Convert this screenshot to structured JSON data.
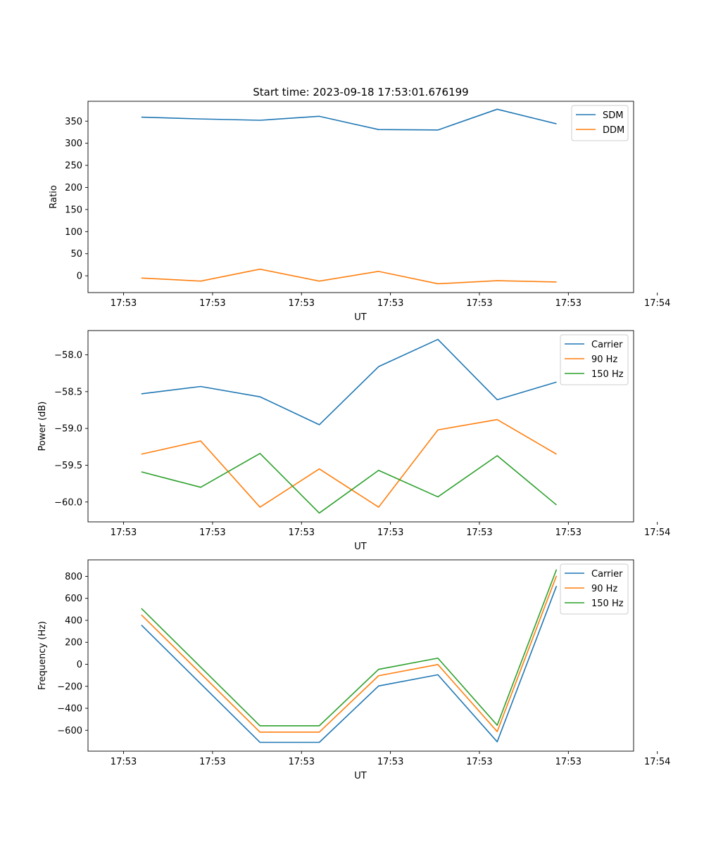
{
  "chart_data": [
    {
      "type": "line",
      "title": "Start time: 2023-09-18 17:53:01.676199",
      "xlabel": "UT",
      "ylabel": "Ratio",
      "xlim": [
        -0.6,
        8.6
      ],
      "ylim": [
        -38,
        395
      ],
      "x": [
        0.3,
        1.3,
        2.3,
        3.3,
        4.3,
        5.3,
        6.3,
        7.3
      ],
      "xticks": [
        0,
        1.5,
        3,
        4.5,
        6,
        7.5,
        9
      ],
      "xtick_labels": [
        "17:53",
        "17:53",
        "17:53",
        "17:53",
        "17:53",
        "17:53",
        "17:54"
      ],
      "yticks": [
        0,
        50,
        100,
        150,
        200,
        250,
        300,
        350
      ],
      "ytick_labels": [
        "0",
        "50",
        "100",
        "150",
        "200",
        "250",
        "300",
        "350"
      ],
      "legend_loc": "upper right",
      "series": [
        {
          "name": "SDM",
          "color": "#1f77b4",
          "values": [
            359,
            355,
            352,
            361,
            331,
            330,
            377,
            344
          ]
        },
        {
          "name": "DDM",
          "color": "#ff7f0e",
          "values": [
            -5,
            -12,
            15,
            -12,
            10,
            -18,
            -11,
            -14
          ]
        }
      ]
    },
    {
      "type": "line",
      "title": "",
      "xlabel": "UT",
      "ylabel": "Power (dB)",
      "xlim": [
        -0.6,
        8.6
      ],
      "ylim": [
        -60.27,
        -57.67
      ],
      "x": [
        0.3,
        1.3,
        2.3,
        3.3,
        4.3,
        5.3,
        6.3,
        7.3
      ],
      "xticks": [
        0,
        1.5,
        3,
        4.5,
        6,
        7.5,
        9
      ],
      "xtick_labels": [
        "17:53",
        "17:53",
        "17:53",
        "17:53",
        "17:53",
        "17:53",
        "17:54"
      ],
      "yticks": [
        -60.0,
        -59.5,
        -59.0,
        -58.5,
        -58.0
      ],
      "ytick_labels": [
        "−60.0",
        "−59.5",
        "−59.0",
        "−58.5",
        "−58.0"
      ],
      "legend_loc": "upper right",
      "series": [
        {
          "name": "Carrier",
          "color": "#1f77b4",
          "values": [
            -58.53,
            -58.43,
            -58.57,
            -58.95,
            -58.16,
            -57.79,
            -58.61,
            -58.37
          ]
        },
        {
          "name": "90 Hz",
          "color": "#ff7f0e",
          "values": [
            -59.35,
            -59.17,
            -60.07,
            -59.55,
            -60.07,
            -59.02,
            -58.88,
            -59.35
          ]
        },
        {
          "name": "150 Hz",
          "color": "#2ca02c",
          "values": [
            -59.59,
            -59.8,
            -59.34,
            -60.15,
            -59.57,
            -59.93,
            -59.37,
            -60.04
          ]
        }
      ]
    },
    {
      "type": "line",
      "title": "",
      "xlabel": "UT",
      "ylabel": "Frequency (Hz)",
      "xlim": [
        -0.6,
        8.6
      ],
      "ylim": [
        -790,
        950
      ],
      "x": [
        0.3,
        1.3,
        2.3,
        3.3,
        4.3,
        5.3,
        6.3,
        7.3
      ],
      "xticks": [
        0,
        1.5,
        3,
        4.5,
        6,
        7.5,
        9
      ],
      "xtick_labels": [
        "17:53",
        "17:53",
        "17:53",
        "17:53",
        "17:53",
        "17:53",
        "17:54"
      ],
      "yticks": [
        -600,
        -400,
        -200,
        0,
        200,
        400,
        600,
        800
      ],
      "ytick_labels": [
        "−600",
        "−400",
        "−200",
        "0",
        "200",
        "400",
        "600",
        "800"
      ],
      "legend_loc": "upper right",
      "series": [
        {
          "name": "Carrier",
          "color": "#1f77b4",
          "values": [
            357,
            null,
            -710,
            -710,
            -197,
            -95,
            -705,
            712
          ]
        },
        {
          "name": "90 Hz",
          "color": "#ff7f0e",
          "values": [
            450,
            null,
            -617,
            -617,
            -104,
            -2,
            -612,
            805
          ]
        },
        {
          "name": "150 Hz",
          "color": "#2ca02c",
          "values": [
            508,
            null,
            -559,
            -559,
            -46,
            56,
            -554,
            863
          ]
        }
      ]
    }
  ]
}
